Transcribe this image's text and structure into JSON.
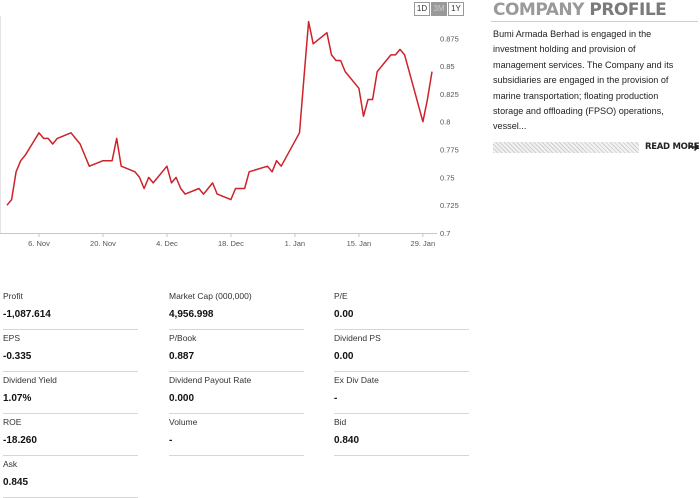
{
  "range_tabs": [
    {
      "label": "1D",
      "active": false
    },
    {
      "label": "3M",
      "active": true
    },
    {
      "label": "1Y",
      "active": false
    }
  ],
  "chart_data": {
    "type": "line",
    "title": "",
    "xlabel": "",
    "ylabel": "",
    "ylim": [
      0.7,
      0.895
    ],
    "y_ticks": [
      0.7,
      0.725,
      0.75,
      0.775,
      0.8,
      0.825,
      0.85,
      0.875
    ],
    "y_tick_labels": [
      "0.7",
      "0.725",
      "0.75",
      "0.775",
      "0.8",
      "0.825",
      "0.85",
      "0.875"
    ],
    "x_tick_labels": [
      "6. Nov",
      "20. Nov",
      "4. Dec",
      "18. Dec",
      "1. Jan",
      "15. Jan",
      "29. Jan"
    ],
    "x_tick_dates": [
      "2017-11-06",
      "2017-11-20",
      "2017-12-04",
      "2017-12-18",
      "2018-01-01",
      "2018-01-15",
      "2018-01-29"
    ],
    "x_range": [
      "2017-10-30",
      "2018-01-31"
    ],
    "line_color": "#cc2229",
    "grid": false,
    "series": [
      {
        "x": [
          "2017-10-30",
          "2017-10-31",
          "2017-11-01",
          "2017-11-02",
          "2017-11-03",
          "2017-11-06",
          "2017-11-07",
          "2017-11-08",
          "2017-11-09",
          "2017-11-10",
          "2017-11-13",
          "2017-11-14",
          "2017-11-15",
          "2017-11-16",
          "2017-11-17",
          "2017-11-20",
          "2017-11-21",
          "2017-11-22",
          "2017-11-23",
          "2017-11-24",
          "2017-11-27",
          "2017-11-28",
          "2017-11-29",
          "2017-11-30",
          "2017-12-01",
          "2017-12-04",
          "2017-12-05",
          "2017-12-06",
          "2017-12-07",
          "2017-12-08",
          "2017-12-11",
          "2017-12-12",
          "2017-12-13",
          "2017-12-14",
          "2017-12-15",
          "2017-12-18",
          "2017-12-19",
          "2017-12-20",
          "2017-12-21",
          "2017-12-22",
          "2017-12-26",
          "2017-12-27",
          "2017-12-28",
          "2017-12-29",
          "2018-01-02",
          "2018-01-03",
          "2018-01-04",
          "2018-01-05",
          "2018-01-08",
          "2018-01-09",
          "2018-01-10",
          "2018-01-11",
          "2018-01-12",
          "2018-01-15",
          "2018-01-16",
          "2018-01-17",
          "2018-01-18",
          "2018-01-19",
          "2018-01-22",
          "2018-01-23",
          "2018-01-24",
          "2018-01-25",
          "2018-01-26",
          "2018-01-29",
          "2018-01-30",
          "2018-01-31"
        ],
        "values": [
          0.725,
          0.73,
          0.755,
          0.765,
          0.77,
          0.79,
          0.785,
          0.785,
          0.78,
          0.785,
          0.79,
          0.785,
          0.78,
          0.77,
          0.76,
          0.765,
          0.765,
          0.765,
          0.785,
          0.76,
          0.755,
          0.75,
          0.74,
          0.75,
          0.745,
          0.76,
          0.745,
          0.75,
          0.74,
          0.735,
          0.74,
          0.735,
          0.74,
          0.745,
          0.735,
          0.73,
          0.74,
          0.74,
          0.74,
          0.755,
          0.76,
          0.755,
          0.765,
          0.76,
          0.79,
          0.84,
          0.89,
          0.87,
          0.88,
          0.86,
          0.855,
          0.855,
          0.845,
          0.83,
          0.805,
          0.82,
          0.82,
          0.845,
          0.86,
          0.86,
          0.865,
          0.86,
          0.845,
          0.8,
          0.82,
          0.845
        ]
      }
    ]
  },
  "profile": {
    "title_light": "COMPANY",
    "title_bold": "PROFILE",
    "text": "Bumi Armada Berhad is engaged in the investment holding and provision of management services. The Company and its subsidiaries are engaged in the provision of marine transportation; floating production storage and offloading (FPSO) operations, vessel...",
    "read_more": "READ MORE"
  },
  "stats": {
    "profit": {
      "label": "Profit",
      "value": "-1,087.614"
    },
    "market_cap": {
      "label": "Market Cap (000,000)",
      "value": "4,956.998"
    },
    "pe": {
      "label": "P/E",
      "value": "0.00"
    },
    "eps": {
      "label": "EPS",
      "value": "-0.335"
    },
    "p_book": {
      "label": "P/Book",
      "value": "0.887"
    },
    "dividend_ps": {
      "label": "Dividend PS",
      "value": "0.00"
    },
    "dividend_yield": {
      "label": "Dividend Yield",
      "value": "1.07%"
    },
    "dividend_payout_rate": {
      "label": "Dividend Payout Rate",
      "value": "0.000"
    },
    "ex_div_date": {
      "label": "Ex Div Date",
      "value": "-"
    },
    "roe": {
      "label": "ROE",
      "value": "-18.260"
    },
    "volume": {
      "label": "Volume",
      "value": "-"
    },
    "bid": {
      "label": "Bid",
      "value": "0.840"
    },
    "ask": {
      "label": "Ask",
      "value": "0.845"
    }
  }
}
